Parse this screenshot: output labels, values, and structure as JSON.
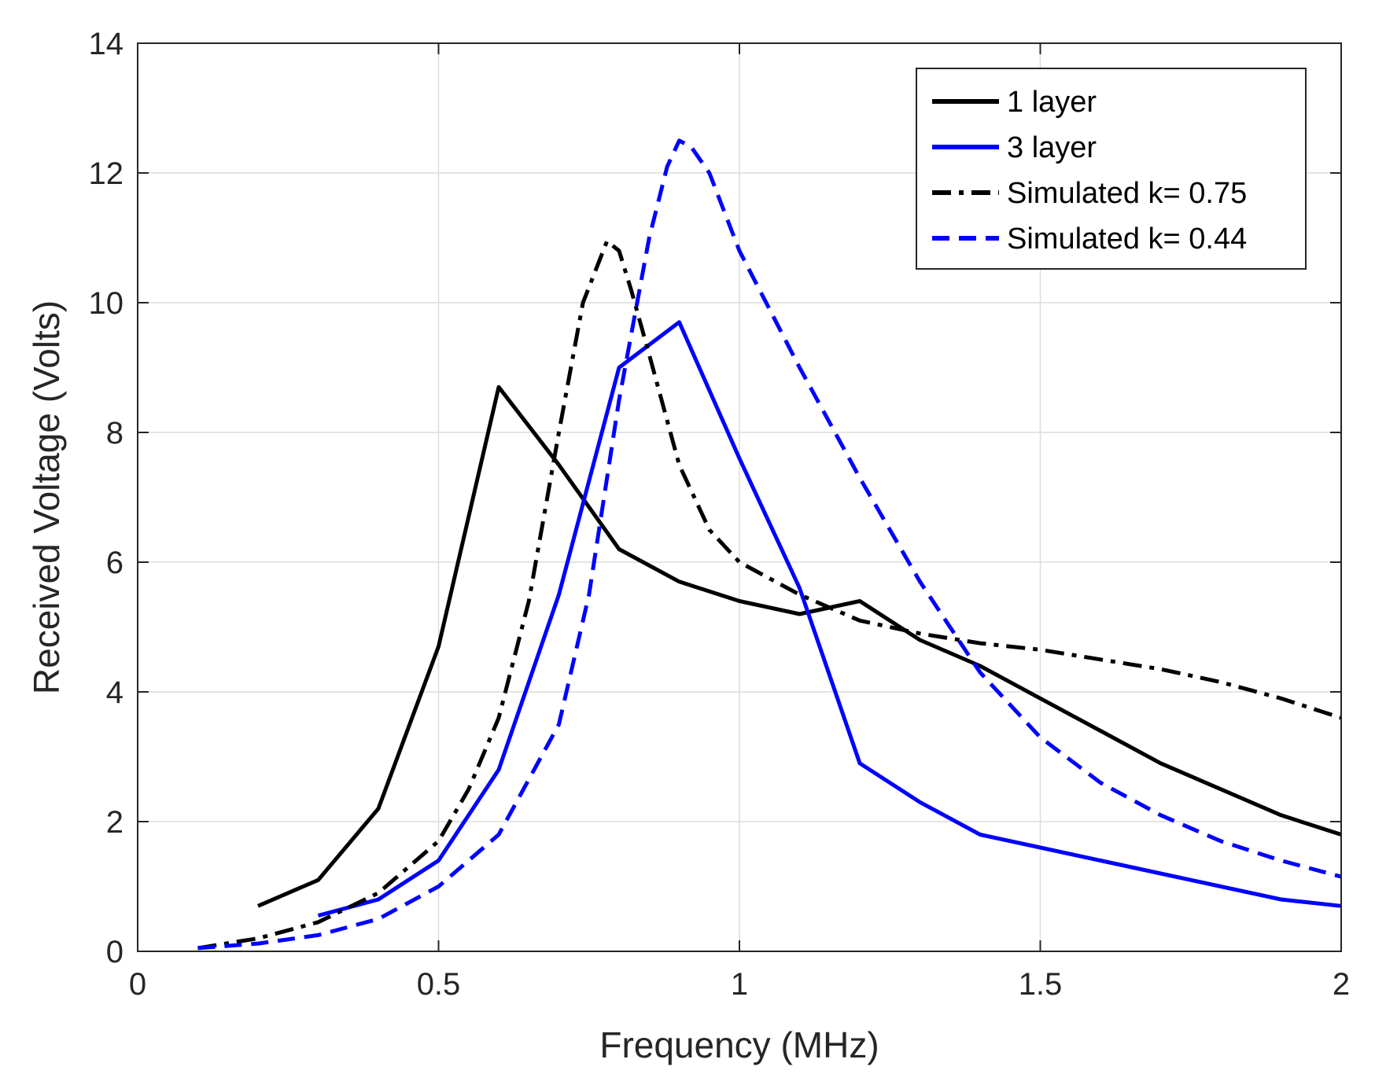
{
  "chart_data": {
    "type": "line",
    "title": "",
    "xlabel": "Frequency (MHz)",
    "ylabel": "Received Voltage (Volts)",
    "xlim": [
      0,
      2
    ],
    "ylim": [
      0,
      14
    ],
    "xticks": [
      0,
      0.5,
      1,
      1.5,
      2
    ],
    "xtick_labels": [
      "0",
      "0.5",
      "1",
      "1.5",
      "2"
    ],
    "yticks": [
      0,
      2,
      4,
      6,
      8,
      10,
      12,
      14
    ],
    "ytick_labels": [
      "0",
      "2",
      "4",
      "6",
      "8",
      "10",
      "12",
      "14"
    ],
    "grid": true,
    "legend_position": "top-right",
    "series": [
      {
        "name": "1 layer",
        "color": "#000000",
        "style": "solid",
        "x": [
          0.2,
          0.3,
          0.4,
          0.5,
          0.6,
          0.7,
          0.8,
          0.9,
          1.0,
          1.1,
          1.2,
          1.3,
          1.4,
          1.5,
          1.6,
          1.7,
          1.8,
          1.9,
          2.0
        ],
        "y": [
          0.7,
          1.1,
          2.2,
          4.7,
          8.7,
          7.5,
          6.2,
          5.7,
          5.4,
          5.2,
          5.4,
          4.8,
          4.4,
          3.9,
          3.4,
          2.9,
          2.5,
          2.1,
          1.8
        ]
      },
      {
        "name": "3 layer",
        "color": "#0000ff",
        "style": "solid",
        "x": [
          0.3,
          0.4,
          0.5,
          0.6,
          0.7,
          0.8,
          0.9,
          1.0,
          1.1,
          1.2,
          1.3,
          1.4,
          1.5,
          1.6,
          1.7,
          1.8,
          1.9,
          2.0
        ],
        "y": [
          0.55,
          0.8,
          1.4,
          2.8,
          5.5,
          9.0,
          9.7,
          7.6,
          5.6,
          2.9,
          2.3,
          1.8,
          1.6,
          1.4,
          1.2,
          1.0,
          0.8,
          0.7
        ]
      },
      {
        "name": "Simulated k= 0.75",
        "color": "#000000",
        "style": "dashdot",
        "x": [
          0.1,
          0.2,
          0.3,
          0.4,
          0.5,
          0.55,
          0.6,
          0.65,
          0.7,
          0.74,
          0.78,
          0.8,
          0.82,
          0.85,
          0.9,
          0.95,
          1.0,
          1.1,
          1.2,
          1.3,
          1.4,
          1.5,
          1.6,
          1.7,
          1.8,
          1.9,
          2.0
        ],
        "y": [
          0.05,
          0.2,
          0.45,
          0.9,
          1.7,
          2.5,
          3.6,
          5.4,
          8.0,
          10.0,
          10.95,
          10.8,
          10.2,
          9.2,
          7.5,
          6.5,
          6.0,
          5.5,
          5.1,
          4.9,
          4.75,
          4.65,
          4.5,
          4.35,
          4.15,
          3.9,
          3.6
        ]
      },
      {
        "name": "Simulated k= 0.44",
        "color": "#0000ff",
        "style": "dashed",
        "x": [
          0.1,
          0.2,
          0.3,
          0.4,
          0.5,
          0.6,
          0.7,
          0.75,
          0.8,
          0.85,
          0.88,
          0.9,
          0.92,
          0.95,
          1.0,
          1.1,
          1.2,
          1.3,
          1.4,
          1.5,
          1.6,
          1.7,
          1.8,
          1.9,
          2.0
        ],
        "y": [
          0.05,
          0.12,
          0.25,
          0.5,
          1.0,
          1.8,
          3.5,
          5.5,
          8.5,
          11.0,
          12.1,
          12.5,
          12.4,
          12.0,
          10.8,
          9.0,
          7.3,
          5.7,
          4.3,
          3.3,
          2.6,
          2.1,
          1.7,
          1.4,
          1.15
        ]
      }
    ]
  }
}
